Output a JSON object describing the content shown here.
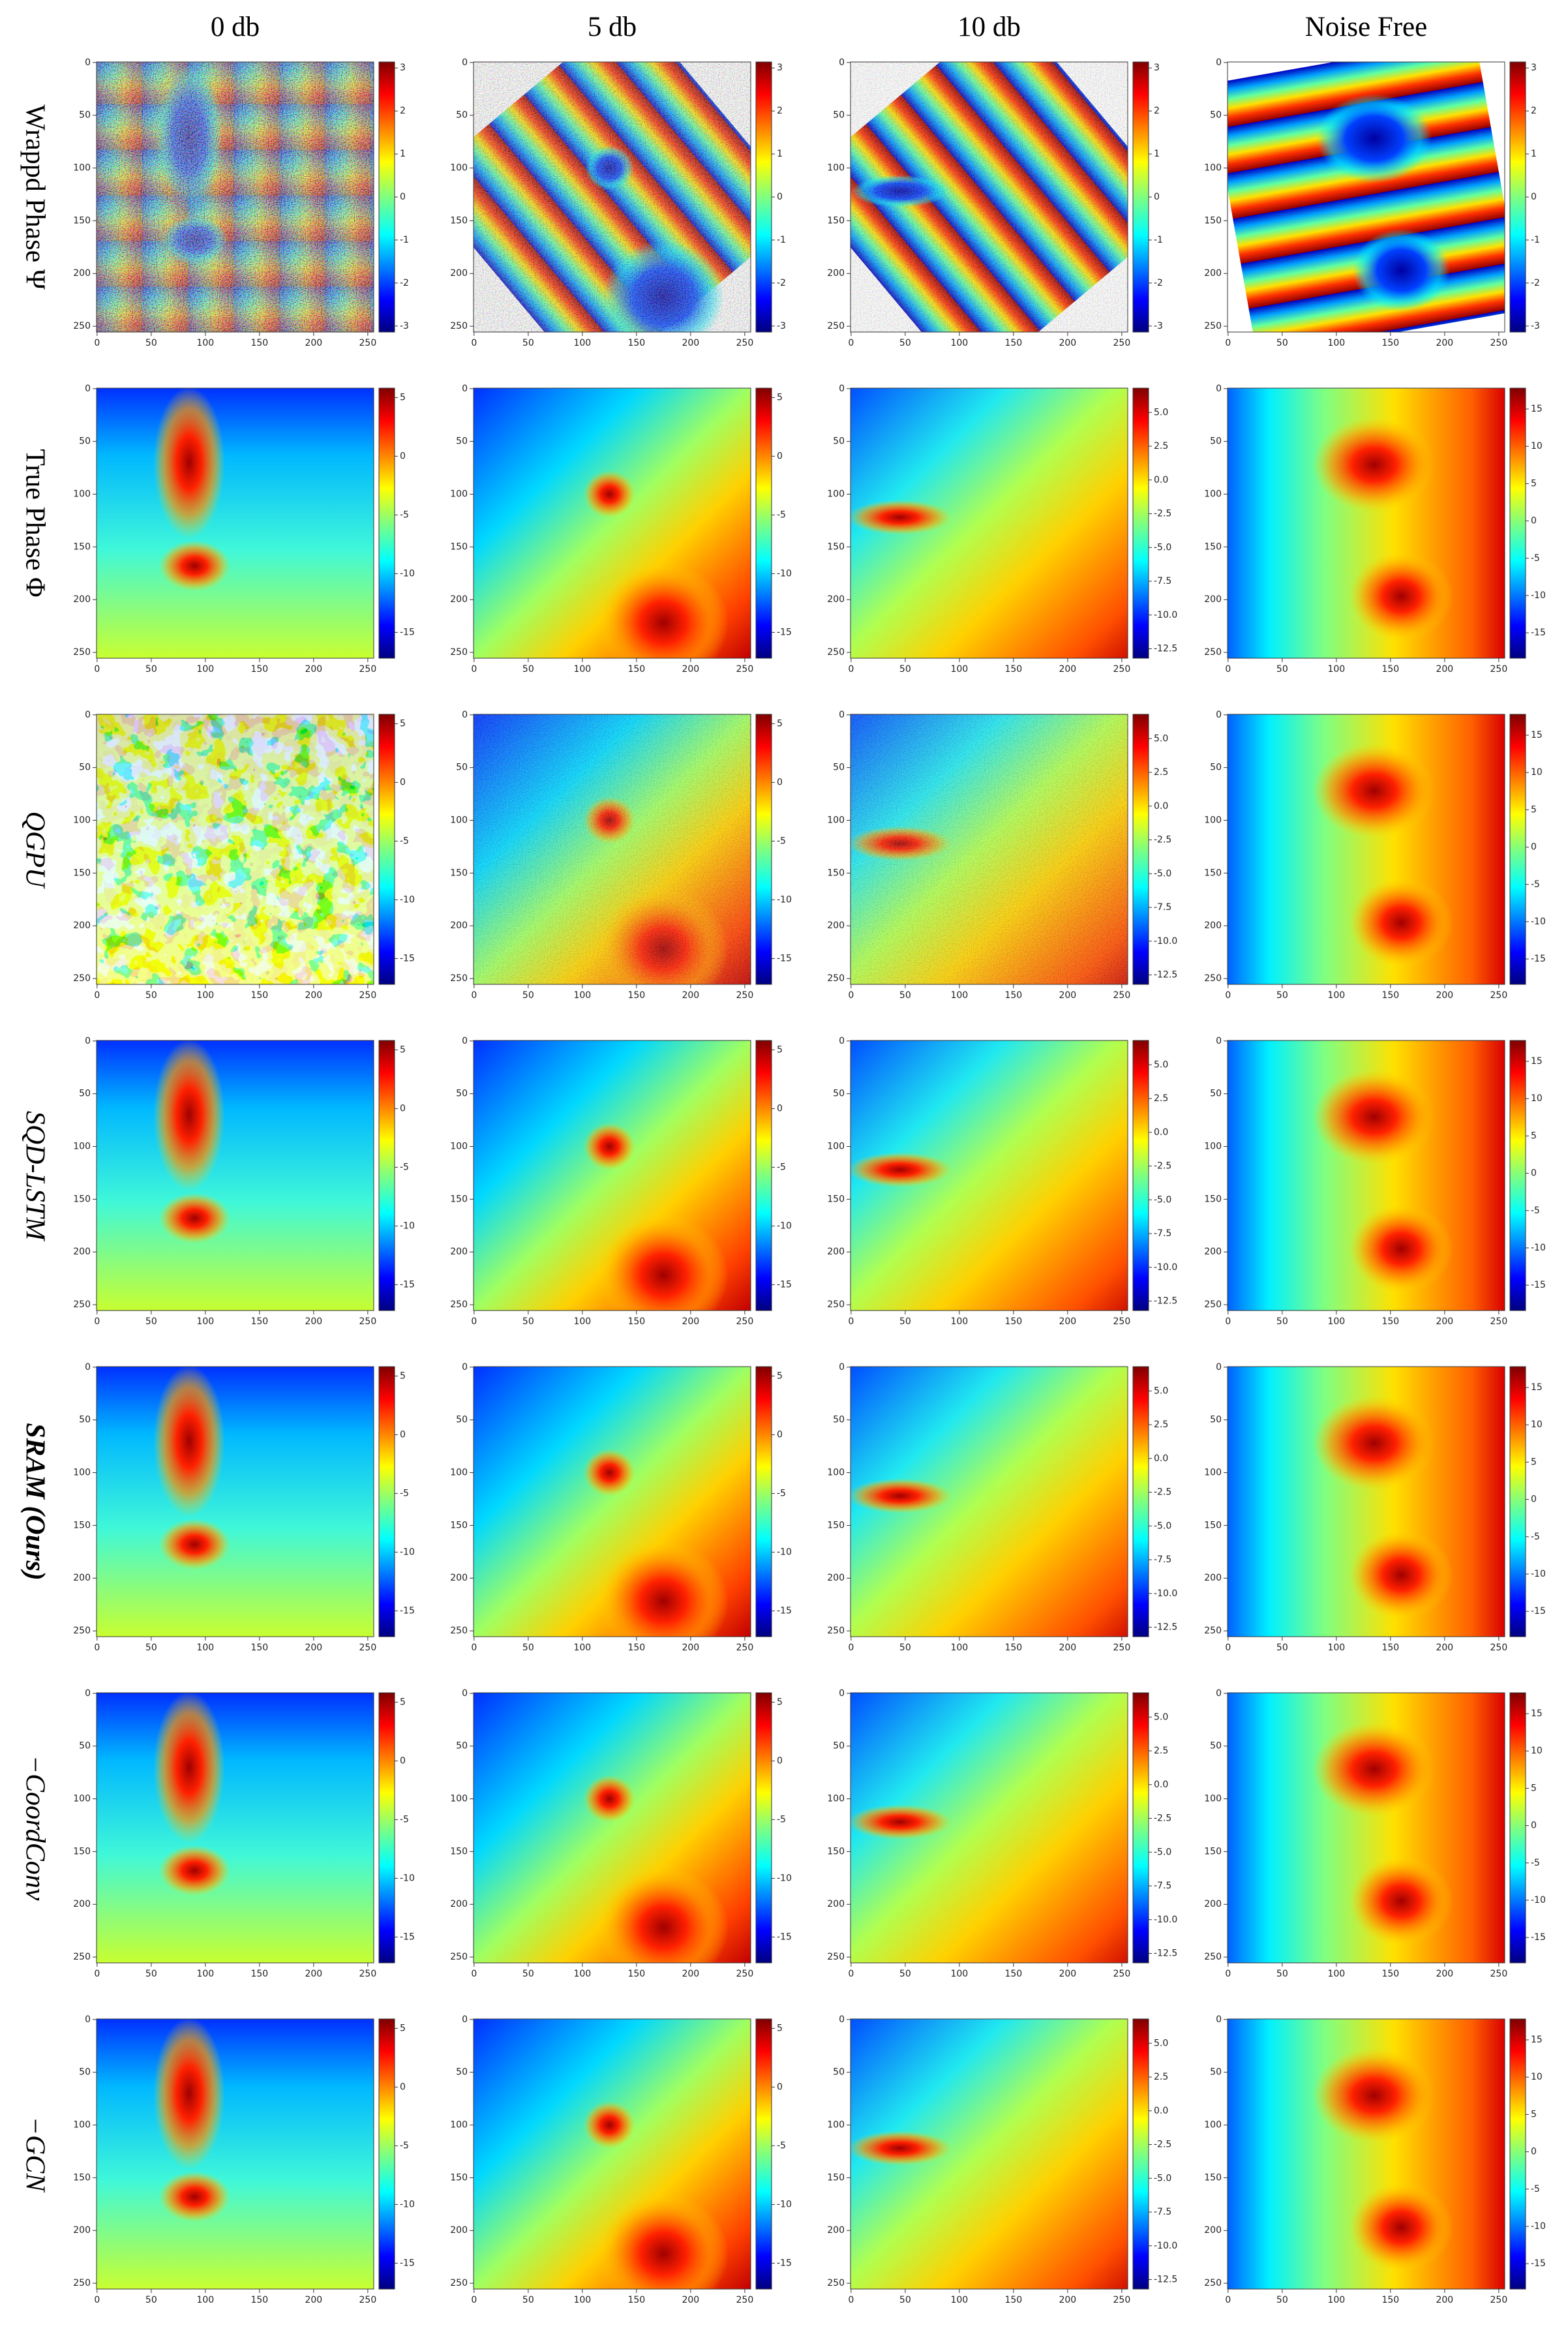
{
  "columns": [
    "0 db",
    "5 db",
    "10 db",
    "Noise Free"
  ],
  "rows": [
    "Wrappd Phase Ψ",
    "True Phase Φ",
    "QGPU",
    "SQD-LSTM",
    "SRAM (Ours)",
    "−CoordConv",
    "−GCN"
  ],
  "axes": {
    "xlim": [
      -0.5,
      255.5
    ],
    "ylim": [
      255.5,
      -0.5
    ],
    "xticks": [
      0,
      50,
      100,
      150,
      200,
      250
    ],
    "yticks": [
      0,
      50,
      100,
      150,
      200,
      250
    ]
  },
  "colorbars": {
    "wrapped": {
      "lim": [
        -3.14,
        3.14
      ],
      "ticks": [
        3,
        2,
        1,
        0,
        -1,
        -2,
        -3
      ]
    },
    "unwrapped": [
      {
        "lim": [
          -17.2,
          5.8
        ],
        "ticks": [
          5,
          0,
          -5,
          -10,
          -15
        ]
      },
      {
        "lim": [
          -17.2,
          5.8
        ],
        "ticks": [
          5,
          0,
          -5,
          -10,
          -15
        ]
      },
      {
        "lim": [
          -13.2,
          6.8
        ],
        "ticks": [
          {
            "value": 5,
            "label": "5.0"
          },
          2.5,
          {
            "value": 0,
            "label": "0.0"
          },
          -2.5,
          {
            "value": -5,
            "label": "-5.0"
          },
          -7.5,
          {
            "value": -10,
            "label": "-10.0"
          },
          -12.5
        ]
      },
      {
        "lim": [
          -18.4,
          17.8
        ],
        "ticks": [
          15,
          10,
          5,
          0,
          -5,
          -10,
          -15
        ]
      }
    ]
  }
}
